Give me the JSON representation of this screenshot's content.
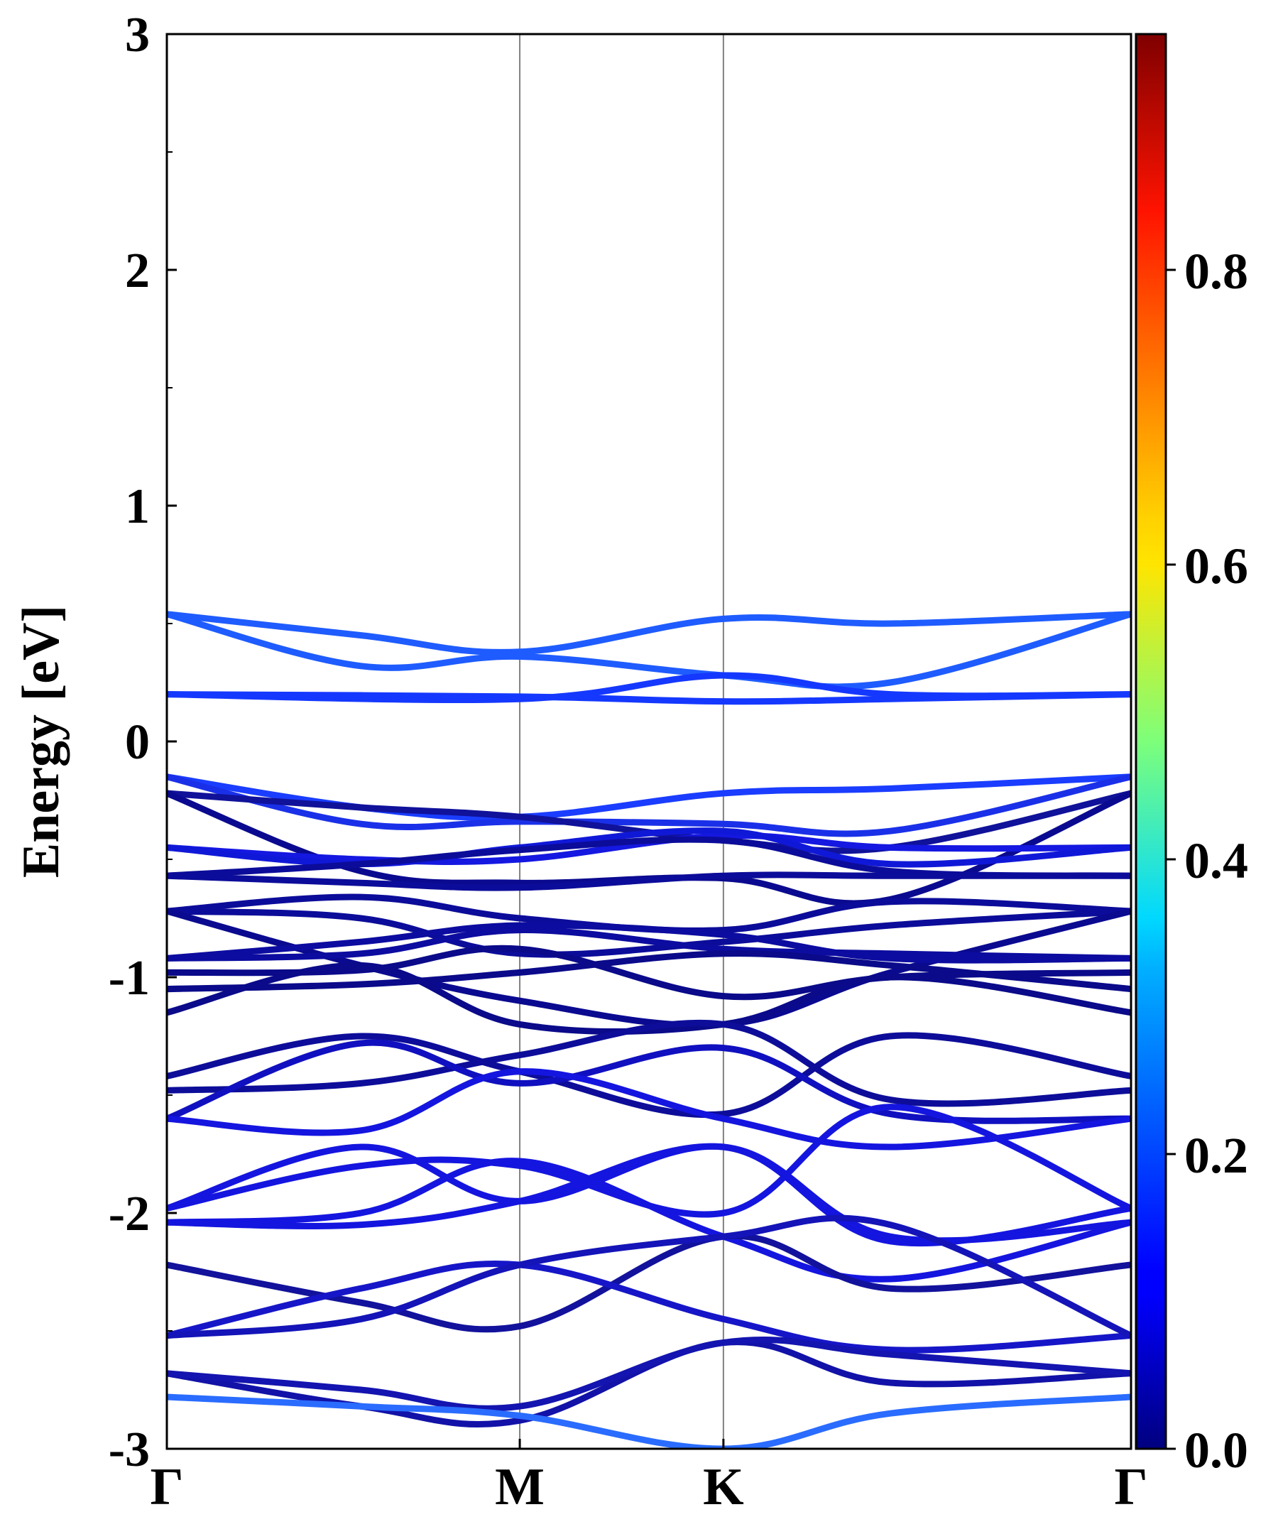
{
  "chart_data": {
    "type": "line",
    "title": "",
    "xlabel": "",
    "ylabel": "Energy [eV]",
    "ylim": [
      -3,
      3
    ],
    "yticks": [
      "3",
      "2",
      "1",
      "0",
      "-1",
      "-2",
      "-3"
    ],
    "ytick_values": [
      3,
      2,
      1,
      0,
      -1,
      -2,
      -3
    ],
    "k_points": [
      {
        "label": "Γ",
        "k": 0
      },
      {
        "label": "M",
        "k": 1
      },
      {
        "label": "K",
        "k": 1.577
      },
      {
        "label": "Γ",
        "k": 2.732
      }
    ],
    "colorbar": {
      "colormap": "jet",
      "range": [
        0,
        0.96
      ],
      "ticks": [
        "0.0",
        "0.2",
        "0.4",
        "0.6",
        "0.8"
      ],
      "tick_values": [
        0,
        0.2,
        0.4,
        0.6,
        0.8
      ]
    },
    "series": [
      {
        "color": "#1f5cff",
        "values": [
          [
            0,
            0.54
          ],
          [
            0.55,
            0.32
          ],
          [
            1,
            0.36
          ],
          [
            1.577,
            0.28
          ],
          [
            2.05,
            0.25
          ],
          [
            2.732,
            0.54
          ]
        ]
      },
      {
        "color": "#1f5cff",
        "values": [
          [
            0,
            0.54
          ],
          [
            0.55,
            0.45
          ],
          [
            1,
            0.38
          ],
          [
            1.577,
            0.52
          ],
          [
            2.05,
            0.5
          ],
          [
            2.732,
            0.54
          ]
        ]
      },
      {
        "color": "#1538ff",
        "values": [
          [
            0,
            0.2
          ],
          [
            1,
            0.18
          ],
          [
            1.577,
            0.28
          ],
          [
            2.05,
            0.2
          ],
          [
            2.732,
            0.2
          ]
        ]
      },
      {
        "color": "#1538ff",
        "values": [
          [
            0,
            0.2
          ],
          [
            1,
            0.19
          ],
          [
            1.577,
            0.17
          ],
          [
            2.05,
            0.18
          ],
          [
            2.732,
            0.2
          ]
        ]
      },
      {
        "color": "#1a3dff",
        "values": [
          [
            0,
            -0.15
          ],
          [
            0.55,
            -0.28
          ],
          [
            1,
            -0.32
          ],
          [
            1.577,
            -0.22
          ],
          [
            2.05,
            -0.2
          ],
          [
            2.732,
            -0.15
          ]
        ]
      },
      {
        "color": "#1a30e8",
        "values": [
          [
            0,
            -0.15
          ],
          [
            0.55,
            -0.35
          ],
          [
            1,
            -0.34
          ],
          [
            1.577,
            -0.35
          ],
          [
            2.05,
            -0.38
          ],
          [
            2.732,
            -0.15
          ]
        ]
      },
      {
        "color": "#10129a",
        "values": [
          [
            0,
            -0.22
          ],
          [
            0.55,
            -0.28
          ],
          [
            1,
            -0.32
          ],
          [
            1.577,
            -0.42
          ],
          [
            2.05,
            -0.45
          ],
          [
            2.732,
            -0.22
          ]
        ]
      },
      {
        "color": "#0a0a90",
        "values": [
          [
            0,
            -0.22
          ],
          [
            0.55,
            -0.55
          ],
          [
            1,
            -0.6
          ],
          [
            1.577,
            -0.58
          ],
          [
            2.05,
            -0.67
          ],
          [
            2.732,
            -0.22
          ]
        ]
      },
      {
        "color": "#1518e0",
        "values": [
          [
            0,
            -0.45
          ],
          [
            0.55,
            -0.5
          ],
          [
            1,
            -0.5
          ],
          [
            1.577,
            -0.4
          ],
          [
            2.05,
            -0.45
          ],
          [
            2.732,
            -0.45
          ]
        ]
      },
      {
        "color": "#1018d8",
        "values": [
          [
            0,
            -0.45
          ],
          [
            0.55,
            -0.52
          ],
          [
            1,
            -0.45
          ],
          [
            1.577,
            -0.38
          ],
          [
            2.05,
            -0.52
          ],
          [
            2.732,
            -0.45
          ]
        ]
      },
      {
        "color": "#0c0c9a",
        "values": [
          [
            0,
            -0.57
          ],
          [
            0.55,
            -0.52
          ],
          [
            1,
            -0.46
          ],
          [
            1.577,
            -0.42
          ],
          [
            2.05,
            -0.55
          ],
          [
            2.732,
            -0.57
          ]
        ]
      },
      {
        "color": "#0c0c9a",
        "values": [
          [
            0,
            -0.57
          ],
          [
            0.55,
            -0.6
          ],
          [
            1,
            -0.62
          ],
          [
            1.577,
            -0.57
          ],
          [
            2.05,
            -0.57
          ],
          [
            2.732,
            -0.57
          ]
        ]
      },
      {
        "color": "#0c0c9a",
        "values": [
          [
            0,
            -0.72
          ],
          [
            0.55,
            -0.66
          ],
          [
            1,
            -0.75
          ],
          [
            1.577,
            -0.8
          ],
          [
            2.05,
            -0.68
          ],
          [
            2.732,
            -0.72
          ]
        ]
      },
      {
        "color": "#0c0c9a",
        "values": [
          [
            0,
            -0.72
          ],
          [
            0.55,
            -0.75
          ],
          [
            1,
            -0.9
          ],
          [
            1.577,
            -0.85
          ],
          [
            2.05,
            -0.78
          ],
          [
            2.732,
            -0.72
          ]
        ]
      },
      {
        "color": "#0a0a90",
        "values": [
          [
            0,
            -0.72
          ],
          [
            0.55,
            -0.95
          ],
          [
            1,
            -1.1
          ],
          [
            1.577,
            -1.2
          ],
          [
            2.05,
            -0.98
          ],
          [
            2.732,
            -0.72
          ]
        ]
      },
      {
        "color": "#0c0ca0",
        "values": [
          [
            0,
            -0.92
          ],
          [
            0.55,
            -0.85
          ],
          [
            1,
            -0.78
          ],
          [
            1.577,
            -0.82
          ],
          [
            2.05,
            -0.92
          ],
          [
            2.732,
            -0.92
          ]
        ]
      },
      {
        "color": "#0c0ca0",
        "values": [
          [
            0,
            -0.92
          ],
          [
            0.55,
            -0.9
          ],
          [
            1,
            -0.8
          ],
          [
            1.577,
            -0.88
          ],
          [
            2.05,
            -0.9
          ],
          [
            2.732,
            -0.92
          ]
        ]
      },
      {
        "color": "#0a0a8a",
        "values": [
          [
            0,
            -0.98
          ],
          [
            0.55,
            -0.97
          ],
          [
            1,
            -0.88
          ],
          [
            1.577,
            -1.08
          ],
          [
            2.05,
            -1.0
          ],
          [
            2.732,
            -0.98
          ]
        ]
      },
      {
        "color": "#0a0a8a",
        "values": [
          [
            0,
            -1.05
          ],
          [
            0.55,
            -1.03
          ],
          [
            1,
            -0.98
          ],
          [
            1.577,
            -0.9
          ],
          [
            2.05,
            -0.95
          ],
          [
            2.732,
            -1.05
          ]
        ]
      },
      {
        "color": "#0a0a8a",
        "values": [
          [
            0,
            -1.15
          ],
          [
            0.55,
            -0.95
          ],
          [
            1,
            -1.2
          ],
          [
            1.577,
            -1.2
          ],
          [
            2.05,
            -1.0
          ],
          [
            2.732,
            -1.15
          ]
        ]
      },
      {
        "color": "#0d0d9a",
        "values": [
          [
            0,
            -1.42
          ],
          [
            0.55,
            -1.25
          ],
          [
            1,
            -1.4
          ],
          [
            1.577,
            -1.58
          ],
          [
            2.05,
            -1.25
          ],
          [
            2.732,
            -1.42
          ]
        ]
      },
      {
        "color": "#0d0d9a",
        "values": [
          [
            0,
            -1.48
          ],
          [
            0.55,
            -1.45
          ],
          [
            1,
            -1.33
          ],
          [
            1.577,
            -1.2
          ],
          [
            2.05,
            -1.52
          ],
          [
            2.732,
            -1.48
          ]
        ]
      },
      {
        "color": "#1010c0",
        "values": [
          [
            0,
            -1.6
          ],
          [
            0.55,
            -1.28
          ],
          [
            1,
            -1.45
          ],
          [
            1.577,
            -1.3
          ],
          [
            2.05,
            -1.58
          ],
          [
            2.732,
            -1.6
          ]
        ]
      },
      {
        "color": "#1515e0",
        "values": [
          [
            0,
            -1.6
          ],
          [
            0.55,
            -1.65
          ],
          [
            1,
            -1.4
          ],
          [
            1.577,
            -1.6
          ],
          [
            2.05,
            -1.72
          ],
          [
            2.732,
            -1.6
          ]
        ]
      },
      {
        "color": "#1515e0",
        "values": [
          [
            0,
            -1.98
          ],
          [
            0.55,
            -1.72
          ],
          [
            1,
            -1.95
          ],
          [
            1.577,
            -1.72
          ],
          [
            2.05,
            -2.12
          ],
          [
            2.732,
            -1.98
          ]
        ]
      },
      {
        "color": "#1515e0",
        "values": [
          [
            0,
            -1.98
          ],
          [
            0.55,
            -1.8
          ],
          [
            1,
            -1.8
          ],
          [
            1.577,
            -2.0
          ],
          [
            2.05,
            -1.55
          ],
          [
            2.732,
            -1.98
          ]
        ]
      },
      {
        "color": "#1515e0",
        "values": [
          [
            0,
            -2.04
          ],
          [
            0.55,
            -2.0
          ],
          [
            1,
            -1.78
          ],
          [
            1.577,
            -2.1
          ],
          [
            2.05,
            -2.28
          ],
          [
            2.732,
            -2.04
          ]
        ]
      },
      {
        "color": "#1515e0",
        "values": [
          [
            0,
            -2.04
          ],
          [
            0.55,
            -2.05
          ],
          [
            1,
            -1.95
          ],
          [
            1.577,
            -1.72
          ],
          [
            2.05,
            -2.1
          ],
          [
            2.732,
            -2.04
          ]
        ]
      },
      {
        "color": "#12129c",
        "values": [
          [
            0,
            -2.22
          ],
          [
            0.55,
            -2.38
          ],
          [
            1,
            -2.48
          ],
          [
            1.577,
            -2.1
          ],
          [
            2.05,
            -2.32
          ],
          [
            2.732,
            -2.22
          ]
        ]
      },
      {
        "color": "#1616c8",
        "values": [
          [
            0,
            -2.52
          ],
          [
            0.55,
            -2.32
          ],
          [
            1,
            -2.22
          ],
          [
            1.577,
            -2.45
          ],
          [
            2.05,
            -2.58
          ],
          [
            2.732,
            -2.52
          ]
        ]
      },
      {
        "color": "#1414b8",
        "values": [
          [
            0,
            -2.52
          ],
          [
            0.55,
            -2.45
          ],
          [
            1,
            -2.22
          ],
          [
            1.577,
            -2.1
          ],
          [
            2.05,
            -2.05
          ],
          [
            2.732,
            -2.52
          ]
        ]
      },
      {
        "color": "#1212a8",
        "values": [
          [
            0,
            -2.68
          ],
          [
            0.55,
            -2.82
          ],
          [
            1,
            -2.88
          ],
          [
            1.577,
            -2.55
          ],
          [
            2.05,
            -2.72
          ],
          [
            2.732,
            -2.68
          ]
        ]
      },
      {
        "color": "#1414b0",
        "values": [
          [
            0,
            -2.68
          ],
          [
            0.55,
            -2.75
          ],
          [
            1,
            -2.82
          ],
          [
            1.577,
            -2.55
          ],
          [
            2.05,
            -2.6
          ],
          [
            2.732,
            -2.68
          ]
        ]
      },
      {
        "color": "#2a6cff",
        "values": [
          [
            0,
            -2.78
          ],
          [
            0.55,
            -2.82
          ],
          [
            1,
            -2.86
          ],
          [
            1.577,
            -3.0
          ],
          [
            2.05,
            -2.85
          ],
          [
            2.732,
            -2.78
          ]
        ]
      }
    ]
  }
}
